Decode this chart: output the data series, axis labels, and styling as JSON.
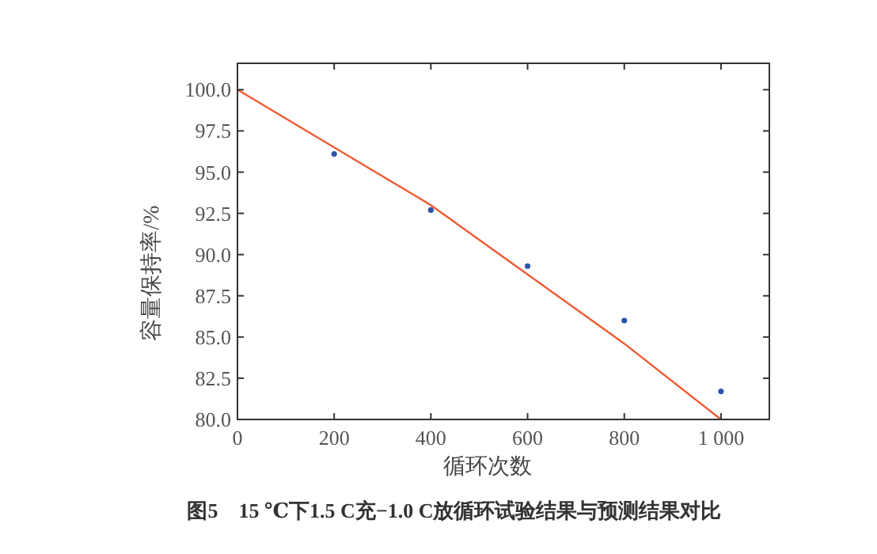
{
  "chart_data": {
    "type": "scatter",
    "xlabel": "循环次数",
    "ylabel": "容量保持率/%",
    "annotations": [
      "图5　15 ℃下1.5 C充−1.0 C放循环试验结果与预测结果对比"
    ],
    "xlim": [
      0,
      1100
    ],
    "xticks": [
      0,
      200,
      400,
      600,
      800,
      {
        "value": 1000,
        "label": "1 000"
      }
    ],
    "ylim": [
      80,
      101.6
    ],
    "yticks": [
      {
        "value": 80,
        "label": "80.0"
      },
      {
        "value": 82.5,
        "label": "82.5"
      },
      {
        "value": 85,
        "label": "85.0"
      },
      {
        "value": 87.5,
        "label": "87.5"
      },
      {
        "value": 90,
        "label": "90.0"
      },
      {
        "value": 92.5,
        "label": "92.5"
      },
      {
        "value": 95,
        "label": "95.0"
      },
      {
        "value": 97.5,
        "label": "97.5"
      },
      {
        "value": 100,
        "label": "100.0"
      }
    ],
    "grid": false,
    "series": [
      {
        "color": "#2a55a8",
        "marker": "circle",
        "x": [
          200,
          400,
          600,
          800,
          1000
        ],
        "values": [
          96.1,
          92.7,
          89.3,
          86.0,
          81.7
        ]
      },
      {
        "type": "line",
        "color": "#f05a32",
        "x": [
          0,
          200,
          400,
          600,
          800,
          1000
        ],
        "values": [
          100,
          96.5,
          93.0,
          88.8,
          84.6,
          80.0
        ]
      }
    ]
  }
}
